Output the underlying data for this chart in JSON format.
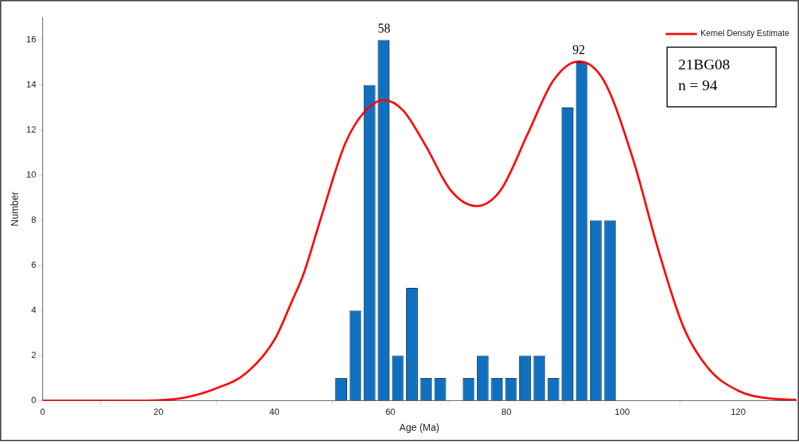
{
  "chart_data": {
    "type": "histogram",
    "xlabel": "Age (Ma)",
    "ylabel": "Number",
    "xlim": [
      0,
      130
    ],
    "xticks": [
      0,
      20,
      40,
      60,
      80,
      100,
      120
    ],
    "ylim": [
      0,
      17
    ],
    "yticks": [
      0,
      2,
      4,
      6,
      8,
      10,
      12,
      14,
      16
    ],
    "grid": false,
    "legend": "top right",
    "bins": [
      50.3,
      52.74,
      55.18,
      57.62,
      60.06,
      62.5,
      64.94,
      67.38,
      69.82,
      72.26,
      74.7,
      77.14,
      79.58,
      82.02,
      84.46,
      86.9,
      89.34,
      91.78,
      94.22,
      96.66,
      99.1
    ],
    "series": [
      {
        "color": "#1070c0",
        "values": [
          1,
          4,
          14,
          16,
          2,
          5,
          1,
          1,
          0,
          1,
          2,
          1,
          1,
          2,
          2,
          1,
          13,
          15,
          8,
          8
        ]
      },
      {
        "type": "line",
        "name": "Kernel Density Estimate",
        "color": "#ff0000",
        "x": [
          0,
          15,
          20,
          25,
          30,
          35,
          40,
          43,
          45,
          47.9,
          52.2,
          55.5,
          58.9,
          62.2,
          66.1,
          70.4,
          74.8,
          79,
          83.8,
          88.1,
          92.5,
          96.8,
          101.9,
          106.2,
          110.5,
          114.9,
          120.1,
          125.3,
          130
        ],
        "values": [
          0,
          0,
          0.02,
          0.16,
          0.55,
          1.2,
          2.7,
          4.4,
          5.6,
          8,
          11.4,
          12.8,
          13.33,
          12.87,
          11.3,
          9.33,
          8.63,
          9.33,
          11.9,
          14.2,
          15.05,
          14.2,
          10.67,
          6.7,
          3.3,
          1.42,
          0.43,
          0.1,
          0.04
        ]
      }
    ],
    "annotations": [
      "58",
      "92",
      "21BG08\nn = 94"
    ]
  }
}
